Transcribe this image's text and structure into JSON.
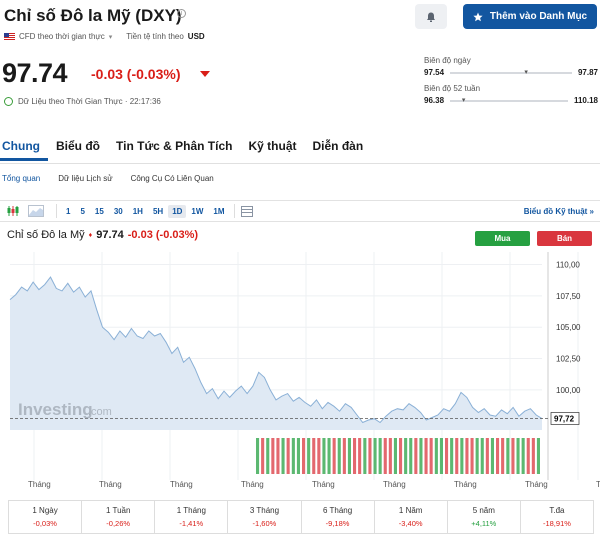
{
  "header": {
    "title": "Chỉ số Đô la Mỹ (DXY)",
    "watchlist_label": "Thêm vào Danh Mục",
    "cfd_label": "CFD theo thời gian thực",
    "currency_prefix": "Tiền tệ tính theo",
    "currency": "USD"
  },
  "quote": {
    "price": "97.74",
    "change": "-0.03 (-0.03%)",
    "realtime_label": "Dữ Liệu theo Thời Gian Thực · 22:17:36"
  },
  "ranges": {
    "day": {
      "label": "Biên độ ngày",
      "low": "97.54",
      "high": "97.87",
      "position": 0.61
    },
    "week52": {
      "label": "Biên độ 52 tuần",
      "low": "96.38",
      "high": "110.18",
      "position": 0.1
    }
  },
  "tabs": [
    "Chung",
    "Biểu đồ",
    "Tin Tức & Phân Tích",
    "Kỹ thuật",
    "Diễn đàn"
  ],
  "subtabs": [
    "Tổng quan",
    "Dữ liệu Lịch sử",
    "Công Cụ Có Liên Quan"
  ],
  "toolbar": {
    "intervals": [
      "1",
      "5",
      "15",
      "30",
      "1H",
      "5H",
      "1D",
      "1W",
      "1M"
    ],
    "active_interval": "1D",
    "tech_chart_label": "Biểu đồ Kỹ thuật »"
  },
  "chart_header": {
    "title": "Chỉ số Đô la Mỹ",
    "price": "97.74",
    "change": "-0.03 (-0.03%)",
    "buy_label": "Mua",
    "sell_label": "Bán",
    "watermark": "Investing",
    "watermark_suffix": ".com"
  },
  "chart_data": {
    "type": "area",
    "yticks": [
      "110,00",
      "107,50",
      "105,00",
      "102,50",
      "100,00"
    ],
    "ylim": [
      96.8,
      111.0
    ],
    "last_label": "97,72",
    "last_value": 97.72,
    "xlabels": [
      "Tháng",
      "Tháng",
      "Tháng",
      "Tháng",
      "Tháng",
      "Tháng",
      "Tháng",
      "Tháng",
      "Tháng"
    ],
    "values": [
      107.2,
      107.6,
      108.2,
      107.9,
      108.6,
      108.0,
      108.4,
      109.0,
      108.1,
      107.9,
      108.5,
      107.8,
      108.2,
      107.4,
      107.9,
      106.4,
      105.0,
      104.6,
      104.0,
      104.7,
      104.2,
      104.9,
      104.3,
      104.1,
      104.7,
      104.3,
      104.5,
      103.8,
      102.9,
      103.4,
      102.2,
      102.6,
      101.7,
      100.6,
      99.7,
      100.1,
      99.3,
      99.9,
      99.4,
      99.9,
      100.3,
      99.7,
      100.3,
      101.4,
      101.0,
      100.0,
      99.2,
      99.5,
      99.7,
      99.1,
      99.4,
      99.0,
      98.7,
      99.2,
      98.5,
      99.0,
      98.7,
      98.3,
      98.9,
      98.6,
      98.0,
      97.4,
      97.6,
      97.7,
      97.4,
      97.9,
      98.3,
      98.5,
      98.4,
      98.9,
      98.6,
      98.2,
      97.6,
      97.8,
      98.0,
      98.5,
      98.3,
      98.9,
      99.8,
      99.4,
      98.6,
      98.2,
      98.5,
      98.0,
      97.9,
      98.4,
      98.1,
      98.6,
      97.9,
      98.3,
      98.5,
      98.0,
      97.72
    ],
    "volume_colors": [
      "g",
      "r",
      "g",
      "r",
      "r",
      "g",
      "r",
      "g",
      "g",
      "r",
      "g",
      "r",
      "r",
      "g",
      "g",
      "r",
      "g",
      "r",
      "g",
      "r",
      "r",
      "g",
      "r",
      "g",
      "g",
      "r",
      "r",
      "g",
      "r",
      "g",
      "g",
      "r",
      "g",
      "r",
      "r",
      "g",
      "g",
      "r",
      "g",
      "r",
      "g",
      "r",
      "r",
      "g",
      "g",
      "r",
      "g",
      "r",
      "r",
      "g",
      "r",
      "g",
      "g",
      "r",
      "r",
      "g"
    ]
  },
  "performance": [
    {
      "label": "1 Ngày",
      "value": "-0,03%",
      "dir": "neg"
    },
    {
      "label": "1 Tuần",
      "value": "-0,26%",
      "dir": "neg"
    },
    {
      "label": "1 Tháng",
      "value": "-1,41%",
      "dir": "neg"
    },
    {
      "label": "3 Tháng",
      "value": "-1,60%",
      "dir": "neg"
    },
    {
      "label": "6 Tháng",
      "value": "-9,18%",
      "dir": "neg"
    },
    {
      "label": "1 Năm",
      "value": "-3,40%",
      "dir": "neg"
    },
    {
      "label": "5 năm",
      "value": "+4,11%",
      "dir": "pos"
    },
    {
      "label": "T.đa",
      "value": "-18,91%",
      "dir": "neg"
    }
  ]
}
